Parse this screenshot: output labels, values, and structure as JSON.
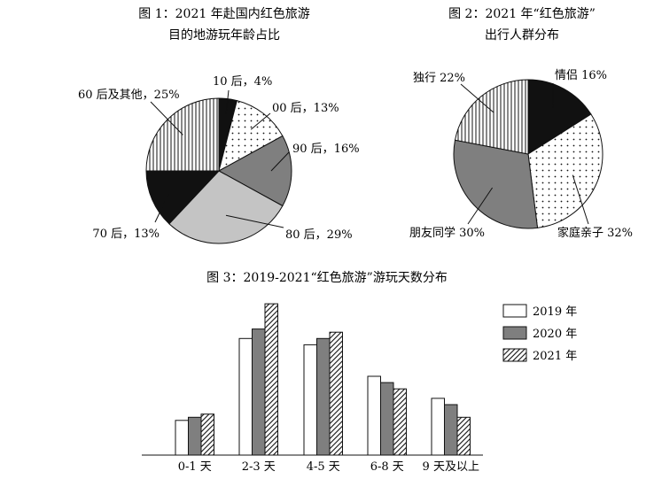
{
  "chart_data": [
    {
      "type": "pie",
      "title": "图 1：2021 年赴国内红色旅游",
      "subtitle": "目的地游玩年龄占比",
      "slices": [
        {
          "label": "10 后，4%",
          "value": 4,
          "pattern": "black"
        },
        {
          "label": "00 后，13%",
          "value": 13,
          "pattern": "dots"
        },
        {
          "label": "90 后，16%",
          "value": 16,
          "pattern": "darkgray"
        },
        {
          "label": "80 后，29%",
          "value": 29,
          "pattern": "lightgray"
        },
        {
          "label": "70 后，13%",
          "value": 13,
          "pattern": "black"
        },
        {
          "label": "60 后及其他，25%",
          "value": 25,
          "pattern": "vstripes"
        }
      ]
    },
    {
      "type": "pie",
      "title": "图 2：2021 年“红色旅游”",
      "subtitle": "出行人群分布",
      "slices": [
        {
          "label": "情侣 16%",
          "value": 16,
          "pattern": "black"
        },
        {
          "label": "家庭亲子 32%",
          "value": 32,
          "pattern": "dots"
        },
        {
          "label": "朋友同学 30%",
          "value": 30,
          "pattern": "darkgray"
        },
        {
          "label": "独行 22%",
          "value": 22,
          "pattern": "vstripes"
        }
      ]
    },
    {
      "type": "bar",
      "title": "图 3：2019-2021“红色旅游”游玩天数分布",
      "categories": [
        "0-1 天",
        "2-3 天",
        "4-5 天",
        "6-8 天",
        "9 天及以上"
      ],
      "series": [
        {
          "name": "2019 年",
          "values": [
            11,
            37,
            35,
            25,
            18
          ],
          "pattern": "white"
        },
        {
          "name": "2020 年",
          "values": [
            12,
            40,
            37,
            23,
            16
          ],
          "pattern": "gray"
        },
        {
          "name": "2021 年",
          "values": [
            13,
            48,
            39,
            21,
            12
          ],
          "pattern": "diag"
        }
      ],
      "ylim": [
        0,
        50
      ],
      "grid": false,
      "legend": "top-right"
    }
  ]
}
